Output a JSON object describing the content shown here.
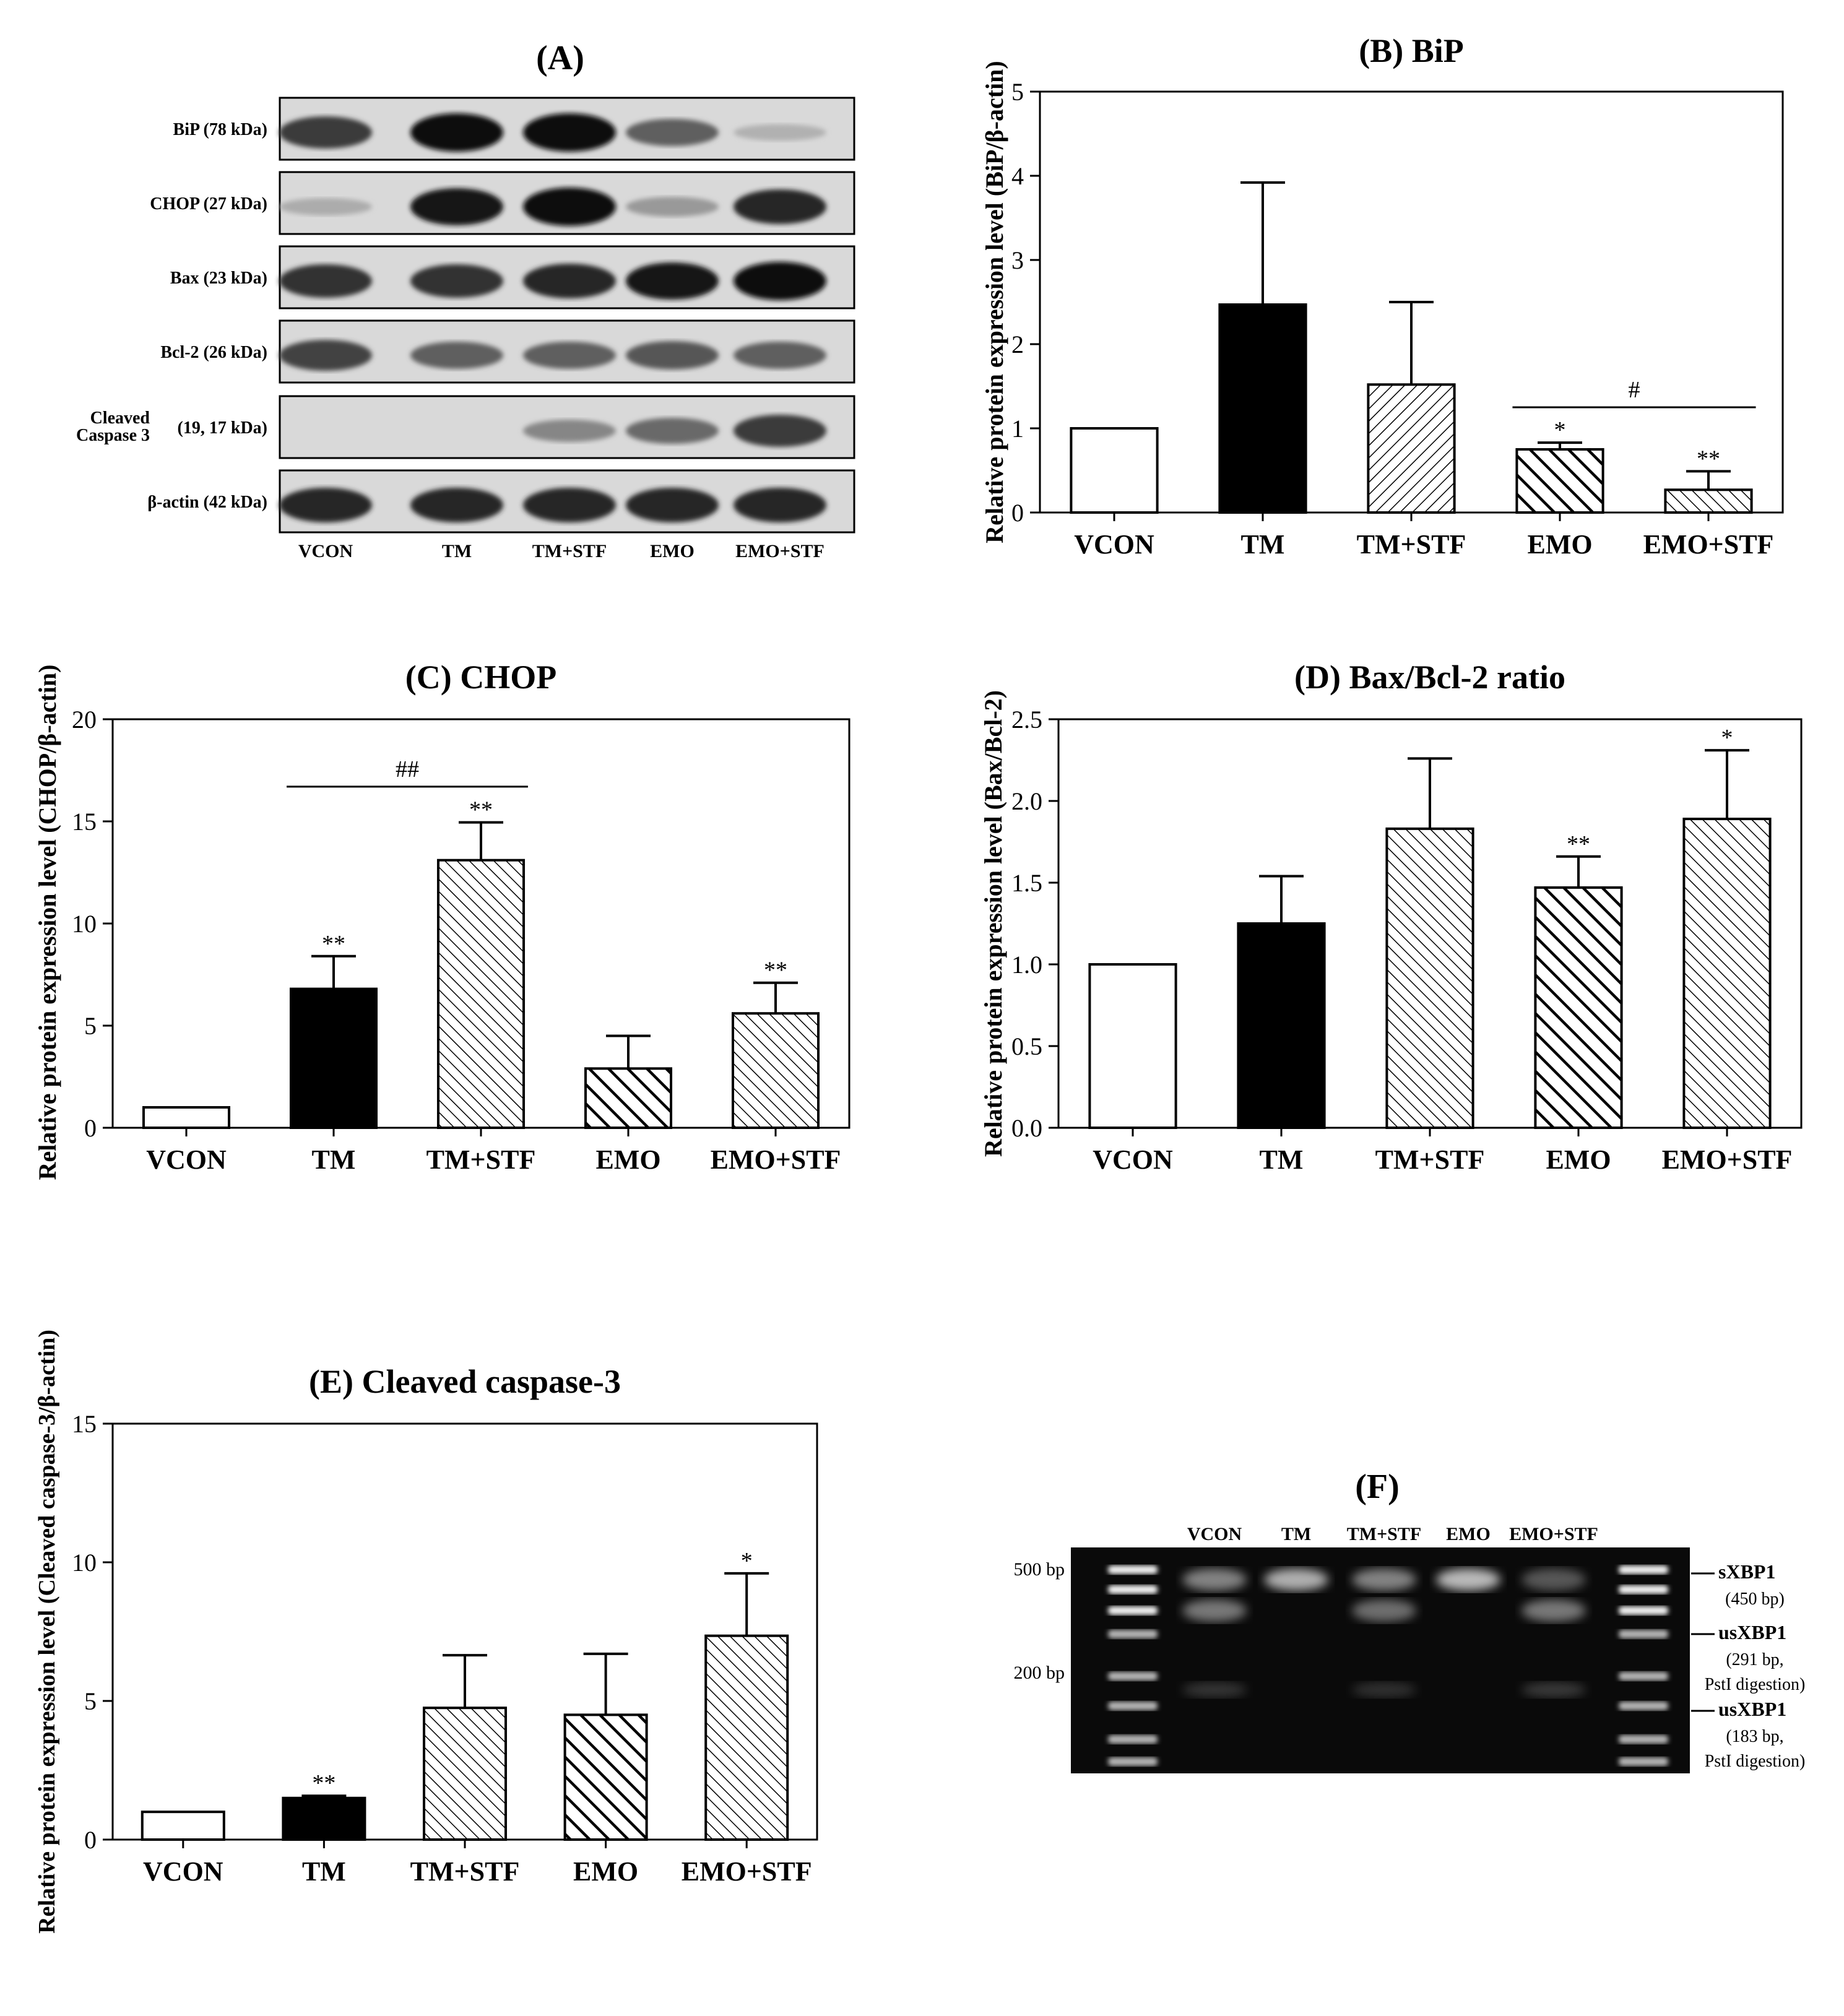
{
  "figure": {
    "groups": [
      "VCON",
      "TM",
      "TM+STF",
      "EMO",
      "EMO+STF"
    ]
  },
  "panel_a": {
    "title": "(A)",
    "rows": [
      {
        "label": "BiP (78 kDa)",
        "bands": [
          0.75,
          1.0,
          1.0,
          0.55,
          0.12
        ]
      },
      {
        "label": "CHOP (27 kDa)",
        "bands": [
          0.15,
          0.95,
          1.0,
          0.25,
          0.85
        ]
      },
      {
        "label": "Bax (23 kDa)",
        "bands": [
          0.8,
          0.8,
          0.85,
          0.95,
          1.0
        ]
      },
      {
        "label": "Bcl-2 (26 kDa)",
        "bands": [
          0.7,
          0.55,
          0.55,
          0.6,
          0.55
        ]
      },
      {
        "label_line1": "Cleaved",
        "label_line2": "Caspase 3",
        "label_kda": "(19, 17 kDa)",
        "bands": [
          0.0,
          0.0,
          0.35,
          0.5,
          0.75
        ]
      },
      {
        "label": "β-actin (42 kDa)",
        "bands": [
          0.85,
          0.85,
          0.85,
          0.85,
          0.85
        ]
      }
    ]
  },
  "chart_data": [
    {
      "type": "bar",
      "title": "(B) BiP",
      "ylabel": "Relative protein expression level (BiP/β-actin)",
      "categories": [
        "VCON",
        "TM",
        "TM+STF",
        "EMO",
        "EMO+STF"
      ],
      "values": [
        1.0,
        2.47,
        1.52,
        0.75,
        0.27
      ],
      "errors": [
        0,
        1.45,
        0.98,
        0.08,
        0.22
      ],
      "ylim": [
        0,
        5
      ],
      "yticks": [
        "0",
        "1",
        "2",
        "3",
        "4",
        "5"
      ],
      "sig": [
        "",
        "",
        "",
        "*",
        "**"
      ],
      "bracket": {
        "from": 3,
        "to": 4,
        "label": "#",
        "y": 1.25
      }
    },
    {
      "type": "bar",
      "title": "(C) CHOP",
      "ylabel": "Relative protein expression level (CHOP/β-actin)",
      "categories": [
        "VCON",
        "TM",
        "TM+STF",
        "EMO",
        "EMO+STF"
      ],
      "values": [
        1.0,
        6.8,
        13.1,
        2.9,
        5.6
      ],
      "errors": [
        0,
        1.6,
        1.85,
        1.6,
        1.5
      ],
      "ylim": [
        0,
        20
      ],
      "yticks": [
        "0",
        "5",
        "10",
        "15",
        "20"
      ],
      "sig": [
        "",
        "**",
        "**",
        "",
        "**"
      ],
      "bracket": {
        "from": 1,
        "to": 2,
        "label": "##",
        "y": 16.7
      }
    },
    {
      "type": "bar",
      "title": "(D) Bax/Bcl-2 ratio",
      "ylabel": "Relative protein expression level (Bax/Bcl-2)",
      "categories": [
        "VCON",
        "TM",
        "TM+STF",
        "EMO",
        "EMO+STF"
      ],
      "values": [
        1.0,
        1.25,
        1.83,
        1.47,
        1.89
      ],
      "errors": [
        0,
        0.29,
        0.43,
        0.19,
        0.42
      ],
      "ylim": [
        0,
        2.5
      ],
      "yticks": [
        "0.0",
        "0.5",
        "1.0",
        "1.5",
        "2.0",
        "2.5"
      ],
      "sig": [
        "",
        "",
        "",
        "**",
        "*"
      ],
      "bracket": null
    },
    {
      "type": "bar",
      "title": "(E) Cleaved caspase-3",
      "ylabel": "Relative protein expression level (Cleaved caspase-3/β-actin)",
      "categories": [
        "VCON",
        "TM",
        "TM+STF",
        "EMO",
        "EMO+STF"
      ],
      "values": [
        1.0,
        1.5,
        4.75,
        4.5,
        7.35
      ],
      "errors": [
        0,
        0.08,
        1.9,
        2.2,
        2.25
      ],
      "ylim": [
        0,
        15
      ],
      "yticks": [
        "0",
        "5",
        "10",
        "15"
      ],
      "sig": [
        "",
        "**",
        "",
        "",
        "*"
      ],
      "bracket": null
    }
  ],
  "panel_f": {
    "title": "(F)",
    "lanes": [
      "VCON",
      "TM",
      "TM+STF",
      "EMO",
      "EMO+STF"
    ],
    "marker_500": "500 bp",
    "marker_200": "200 bp",
    "labels": [
      {
        "name": "sXBP1",
        "detail1": "(450 bp)",
        "detail2": ""
      },
      {
        "name": "usXBP1",
        "detail1": "(291 bp,",
        "detail2": "PstI digestion)"
      },
      {
        "name": "usXBP1",
        "detail1": "(183 bp,",
        "detail2": "PstI digestion)"
      }
    ],
    "band_intensity": {
      "upper": [
        0.55,
        0.75,
        0.55,
        0.8,
        0.35
      ],
      "middle": [
        0.5,
        0.0,
        0.45,
        0.0,
        0.5
      ],
      "lower": [
        0.2,
        0.0,
        0.18,
        0.0,
        0.22
      ]
    }
  }
}
